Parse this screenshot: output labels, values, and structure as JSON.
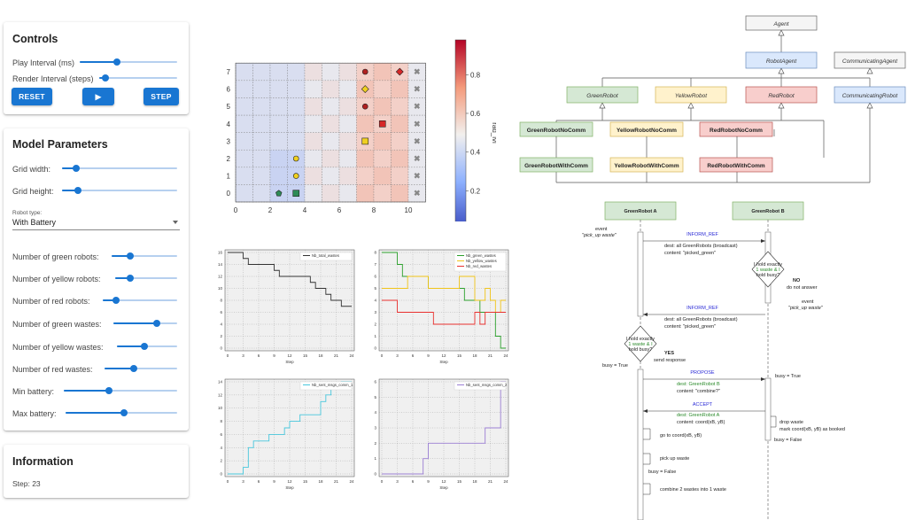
{
  "controls": {
    "title": "Controls",
    "play_interval_label": "Play Interval (ms)",
    "play_interval_value": 0.38,
    "render_interval_label": "Render Interval (steps)",
    "render_interval_value": 0.08,
    "reset_label": "RESET",
    "play_icon": "play-icon",
    "play_label": "▶",
    "step_label": "STEP"
  },
  "params": {
    "title": "Model Parameters",
    "grid_width_label": "Grid width:",
    "grid_width_value": 0.12,
    "grid_height_label": "Grid height:",
    "grid_height_value": 0.14,
    "robot_type_label": "Robot type:",
    "robot_type_value": "With Battery",
    "green_robots_label": "Number of green robots:",
    "green_robots_value": 0.28,
    "yellow_robots_label": "Number of yellow robots:",
    "yellow_robots_value": 0.24,
    "red_robots_label": "Number of red robots:",
    "red_robots_value": 0.18,
    "green_wastes_label": "Number of green wastes:",
    "green_wastes_value": 0.68,
    "yellow_wastes_label": "Number of yellow wastes:",
    "yellow_wastes_value": 0.45,
    "red_wastes_label": "Number of red wastes:",
    "red_wastes_value": 0.4,
    "min_battery_label": "Min battery:",
    "min_battery_value": 0.4,
    "max_battery_label": "Max battery:",
    "max_battery_value": 0.52
  },
  "info": {
    "title": "Information",
    "step_text": "Step: 23"
  },
  "grid": {
    "colorbar_label": "rad_lvl",
    "colorbar_ticks": [
      "0.2",
      "0.4",
      "0.6",
      "0.8"
    ],
    "x_ticks": [
      "0",
      "2",
      "4",
      "6",
      "8",
      "10"
    ],
    "y_ticks": [
      "0",
      "1",
      "2",
      "3",
      "4",
      "5",
      "6",
      "7"
    ]
  },
  "charts": [
    {
      "legend": [
        "Nb_total_wastes"
      ],
      "x_ticks": [
        "0",
        "3",
        "6",
        "9",
        "12",
        "15",
        "18",
        "21",
        "24"
      ],
      "y_ticks": [
        "0",
        "2",
        "4",
        "6",
        "8",
        "10",
        "12",
        "14",
        "16"
      ],
      "xlabel": "Step"
    },
    {
      "legend": [
        "Nb_green_wastes",
        "Nb_yellow_wastes",
        "Nb_red_wastes"
      ],
      "x_ticks": [
        "0",
        "3",
        "6",
        "9",
        "12",
        "15",
        "18",
        "21",
        "24"
      ],
      "y_ticks": [
        "0",
        "1",
        "2",
        "3",
        "4",
        "5",
        "6",
        "7",
        "8"
      ],
      "xlabel": "Step"
    },
    {
      "legend": [
        "Nb_sent_msgs_comm_1"
      ],
      "x_ticks": [
        "0",
        "3",
        "6",
        "9",
        "12",
        "15",
        "18",
        "21",
        "24"
      ],
      "y_ticks": [
        "0",
        "2",
        "4",
        "6",
        "8",
        "10",
        "12",
        "14"
      ],
      "xlabel": "Step"
    },
    {
      "legend": [
        "Nb_sent_msgs_comm_2"
      ],
      "x_ticks": [
        "0",
        "3",
        "6",
        "9",
        "12",
        "15",
        "18",
        "21",
        "24"
      ],
      "y_ticks": [
        "0",
        "1",
        "2",
        "3",
        "4",
        "5",
        "6"
      ],
      "xlabel": "Step"
    }
  ],
  "chart_data": [
    {
      "type": "line",
      "x": [
        0,
        1,
        2,
        3,
        4,
        5,
        6,
        7,
        8,
        9,
        10,
        11,
        12,
        13,
        14,
        15,
        16,
        17,
        18,
        19,
        20,
        21,
        22,
        23
      ],
      "series": [
        {
          "name": "Nb_total_wastes",
          "values": [
            16,
            16,
            16,
            15,
            14,
            14,
            14,
            14,
            14,
            13,
            12,
            12,
            12,
            12,
            12,
            12,
            11,
            10,
            10,
            9,
            8,
            8,
            7,
            7
          ]
        }
      ],
      "ylim": [
        0,
        16
      ],
      "xlim": [
        0,
        24
      ]
    },
    {
      "type": "line",
      "x": [
        0,
        1,
        2,
        3,
        4,
        5,
        6,
        7,
        8,
        9,
        10,
        11,
        12,
        13,
        14,
        15,
        16,
        17,
        18,
        19,
        20,
        21,
        22,
        23
      ],
      "series": [
        {
          "name": "Nb_green_wastes",
          "values": [
            8,
            8,
            8,
            7,
            6,
            6,
            6,
            6,
            6,
            5,
            5,
            5,
            5,
            5,
            5,
            5,
            4,
            4,
            4,
            3,
            3,
            3,
            1,
            0
          ]
        },
        {
          "name": "Nb_yellow_wastes",
          "values": [
            5,
            5,
            5,
            5,
            5,
            6,
            6,
            6,
            6,
            5,
            5,
            5,
            5,
            5,
            5,
            6,
            6,
            6,
            4,
            4,
            5,
            4,
            3,
            4
          ]
        },
        {
          "name": "Nb_red_wastes",
          "values": [
            4,
            4,
            4,
            3,
            3,
            3,
            3,
            3,
            3,
            3,
            2,
            2,
            2,
            2,
            2,
            2,
            2,
            2,
            3,
            2,
            3,
            3,
            3,
            3
          ]
        }
      ],
      "ylim": [
        0,
        8
      ],
      "xlim": [
        0,
        24
      ]
    },
    {
      "type": "line",
      "x": [
        0,
        1,
        2,
        3,
        4,
        5,
        6,
        7,
        8,
        9,
        10,
        11,
        12,
        13,
        14,
        15,
        16,
        17,
        18,
        19,
        20,
        21,
        22,
        23
      ],
      "series": [
        {
          "name": "Nb_sent_msgs_comm_1",
          "values": [
            0,
            0,
            0,
            1,
            4,
            5,
            5,
            5,
            6,
            6,
            6,
            7,
            8,
            8,
            9,
            9,
            9,
            9,
            11,
            12,
            13,
            13,
            14,
            14
          ]
        }
      ],
      "ylim": [
        0,
        14
      ],
      "xlim": [
        0,
        24
      ]
    },
    {
      "type": "line",
      "x": [
        0,
        1,
        2,
        3,
        4,
        5,
        6,
        7,
        8,
        9,
        10,
        11,
        12,
        13,
        14,
        15,
        16,
        17,
        18,
        19,
        20,
        21,
        22,
        23
      ],
      "series": [
        {
          "name": "Nb_sent_msgs_comm_2",
          "values": [
            0,
            0,
            0,
            0,
            0,
            0,
            0,
            0,
            1,
            2,
            2,
            2,
            2,
            2,
            2,
            2,
            2,
            2,
            2,
            2,
            3,
            3,
            3,
            6
          ]
        }
      ],
      "ylim": [
        0,
        6
      ],
      "xlim": [
        0,
        24
      ]
    }
  ],
  "class_diagram": {
    "agent": "Agent",
    "robot_agent": "RobotAgent",
    "communicating_agent": "CommunicatingAgent",
    "green_robot": "GreenRobot",
    "yellow_robot": "YellowRobot",
    "red_robot": "RedRobot",
    "communicating_robot": "CommunicatingRobot",
    "green_no_comm": "GreenRobotNoComm",
    "yellow_no_comm": "YellowRobotNoComm",
    "red_no_comm": "RedRobotNoComm",
    "green_with_comm": "GreenRobotWithComm",
    "yellow_with_comm": "YellowRobotWithComm",
    "red_with_comm": "RedRobotWithComm"
  },
  "sequence": {
    "a": "GreenRobot A",
    "b": "GreenRobot B",
    "event1": "event",
    "event1b": "\"pick_up waste\"",
    "inform_ref_1": "INFORM_REF",
    "dest1": "dest: all GreenRobots (broadcast)",
    "content1": "content: \"picked_green\"",
    "q1a": "I hold exactly",
    "q1b": "1 waste & I",
    "q1c": "hold busy?",
    "no": "NO",
    "no_answer": "do not answer",
    "event2": "event",
    "event2b": "\"pick_up waste\"",
    "inform_ref_2": "INFORM_REF",
    "dest2": "dest: all GreenRobots (broadcast)",
    "content2": "content: \"picked_green\"",
    "q2a": "I hold exactly",
    "q2b": "1 waste & I",
    "q2c": "hold busy?",
    "yes": "YES",
    "send_response": "send response",
    "busy_true_a": "busy = True",
    "propose": "PROPOSE",
    "dest3": "dest: GreenRobot B",
    "content3": "content: \"combine?\"",
    "busy_true_b": "busy = True",
    "accept": "ACCEPT",
    "dest4": "dest: GreenRobot A",
    "content4": "content: coord(xB, yB)",
    "drop_waste": "drop waste",
    "mark_coord": "mark coord(xB, yB) as booked",
    "busy_false_b": "busy = False",
    "go_to": "go to coord(xB, yB)",
    "pick_up": "pick up waste",
    "busy_false_a": "busy = False",
    "combine": "combine 2 wastes into 1 waste"
  }
}
